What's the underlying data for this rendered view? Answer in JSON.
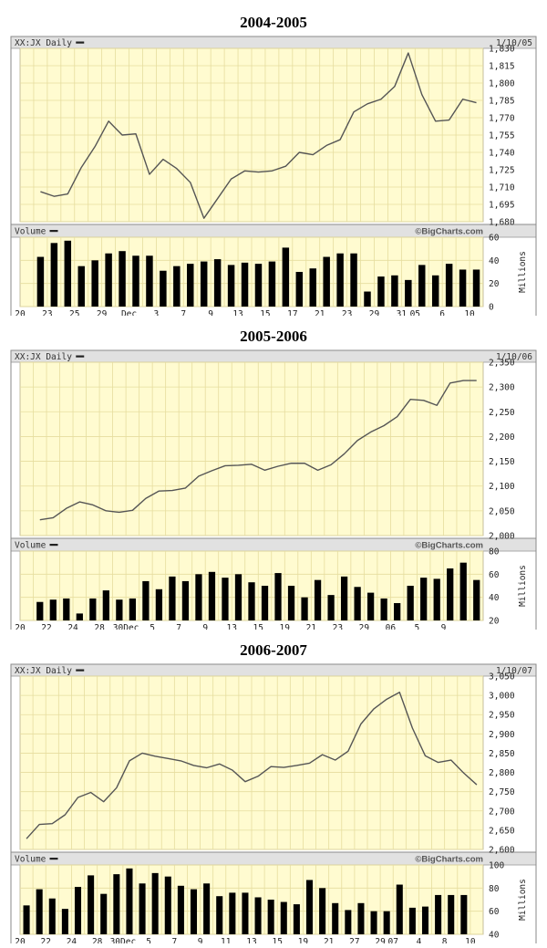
{
  "colors": {
    "plot_bg": "#fffbd0",
    "grid": "#e6dd9e",
    "header_bg": "#e1e1e1",
    "line": "#555555",
    "bar": "#000000"
  },
  "chart_data": [
    {
      "title": "2004-2005",
      "type": "line",
      "ticker_label": "XX:JX Daily",
      "date_label": "1/10/05",
      "volume_label": "Volume",
      "watermark": "©BigCharts.com",
      "volume_unit": "Millions",
      "x_ticks": [
        "20",
        "23",
        "25",
        "29",
        "Dec",
        "3",
        "7",
        "9",
        "13",
        "15",
        "17",
        "21",
        "23",
        "29",
        "31",
        "05",
        "6",
        "10"
      ],
      "x_tick_index": [
        0,
        2,
        4,
        6,
        8,
        10,
        12,
        14,
        16,
        18,
        20,
        22,
        24,
        26,
        28,
        29,
        31,
        33
      ],
      "price_ylim": [
        1680,
        1830
      ],
      "price_yticks": [
        "1,830",
        "1,815",
        "1,800",
        "1,785",
        "1,770",
        "1,755",
        "1,740",
        "1,725",
        "1,710",
        "1,695",
        "1,680"
      ],
      "price": [
        null,
        1706,
        1702,
        1704,
        1727,
        1745,
        1767,
        1755,
        1756,
        1721,
        1734,
        1726,
        1714,
        1683,
        1700,
        1717,
        1724,
        1723,
        1724,
        1728,
        1740,
        1738,
        1746,
        1751,
        1775,
        1782,
        1786,
        1797,
        1826,
        1790,
        1767,
        1768,
        1786,
        1783
      ],
      "volume_ylim": [
        0,
        60
      ],
      "volume_yticks": [
        "60",
        "40",
        "20",
        "0"
      ],
      "volume": [
        null,
        43,
        55,
        57,
        35,
        40,
        46,
        48,
        44,
        44,
        31,
        35,
        37,
        39,
        41,
        36,
        38,
        37,
        39,
        51,
        30,
        33,
        43,
        46,
        46,
        13,
        26,
        27,
        23,
        36,
        27,
        37,
        32,
        32
      ]
    },
    {
      "title": "2005-2006",
      "type": "line",
      "ticker_label": "XX:JX Daily",
      "date_label": "1/10/06",
      "volume_label": "Volume",
      "watermark": "©BigCharts.com",
      "volume_unit": "Millions",
      "x_ticks": [
        "20",
        "22",
        "24",
        "28",
        "30Dec",
        "5",
        "7",
        "9",
        "13",
        "15",
        "19",
        "21",
        "23",
        "29",
        "06",
        "5",
        "9"
      ],
      "x_tick_index": [
        0,
        2,
        4,
        6,
        8,
        10,
        12,
        14,
        16,
        18,
        20,
        22,
        24,
        26,
        28,
        30,
        32
      ],
      "price_ylim": [
        2000,
        2350
      ],
      "price_yticks": [
        "2,350",
        "2,300",
        "2,250",
        "2,200",
        "2,150",
        "2,100",
        "2,050",
        "2,000"
      ],
      "price": [
        null,
        2032,
        2036,
        2055,
        2068,
        2062,
        2050,
        2047,
        2051,
        2075,
        2090,
        2091,
        2096,
        2120,
        2131,
        2141,
        2142,
        2144,
        2132,
        2140,
        2146,
        2146,
        2132,
        2143,
        2165,
        2192,
        2209,
        2222,
        2240,
        2275,
        2273,
        2263,
        2308,
        2313,
        2313
      ],
      "volume_ylim": [
        20,
        80
      ],
      "volume_yticks": [
        "80",
        "60",
        "40",
        "20"
      ],
      "volume": [
        null,
        36,
        38,
        39,
        26,
        39,
        46,
        38,
        39,
        54,
        47,
        58,
        54,
        60,
        62,
        57,
        60,
        53,
        50,
        61,
        50,
        40,
        55,
        42,
        58,
        49,
        44,
        39,
        35,
        50,
        57,
        56,
        65,
        70,
        55
      ]
    },
    {
      "title": "2006-2007",
      "type": "line",
      "ticker_label": "XX:JX Daily",
      "date_label": "1/10/07",
      "volume_label": "Volume",
      "watermark": "©BigCharts.com",
      "volume_unit": "Millions",
      "x_ticks": [
        "20",
        "22",
        "24",
        "28",
        "30Dec",
        "5",
        "7",
        "9",
        "11",
        "13",
        "15",
        "19",
        "21",
        "27",
        "29",
        "07",
        "4",
        "8",
        "10"
      ],
      "x_tick_index": [
        0,
        2,
        4,
        6,
        8,
        10,
        12,
        14,
        16,
        18,
        20,
        22,
        24,
        26,
        28,
        29,
        31,
        33,
        35
      ],
      "price_ylim": [
        2600,
        3050
      ],
      "price_yticks": [
        "3,050",
        "3,000",
        "2,950",
        "2,900",
        "2,850",
        "2,800",
        "2,750",
        "2,700",
        "2,650",
        "2,600"
      ],
      "price": [
        2628,
        2665,
        2667,
        2690,
        2735,
        2748,
        2724,
        2760,
        2830,
        2850,
        2842,
        2836,
        2830,
        2818,
        2812,
        2822,
        2806,
        2776,
        2790,
        2815,
        2813,
        2818,
        2824,
        2846,
        2832,
        2855,
        2926,
        2965,
        2990,
        3008,
        2915,
        2843,
        2826,
        2832,
        2798,
        2768
      ],
      "volume_ylim": [
        40,
        100
      ],
      "volume_yticks": [
        "100",
        "80",
        "60",
        "40"
      ],
      "volume": [
        65,
        79,
        71,
        62,
        81,
        91,
        75,
        92,
        97,
        84,
        93,
        90,
        82,
        79,
        84,
        73,
        76,
        76,
        72,
        70,
        68,
        66,
        87,
        80,
        67,
        61,
        67,
        60,
        60,
        83,
        63,
        64,
        74,
        74,
        74,
        null
      ]
    }
  ]
}
